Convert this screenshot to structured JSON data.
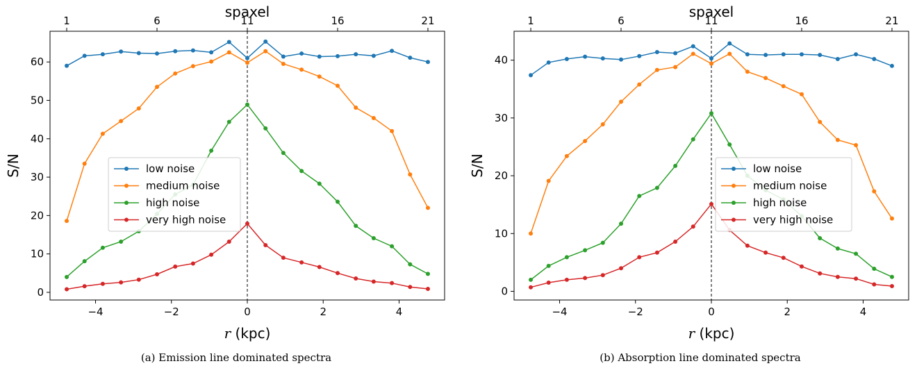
{
  "chart_data": [
    {
      "type": "line",
      "caption": "(a) Emission line dominated spectra",
      "xlabel_var": "r",
      "xlabel_unit": " (kpc)",
      "ylabel": "S/N",
      "top_xlabel": "spaxel",
      "x": [
        -4.76,
        -4.29,
        -3.81,
        -3.33,
        -2.86,
        -2.38,
        -1.9,
        -1.43,
        -0.95,
        -0.48,
        0.0,
        0.48,
        0.95,
        1.43,
        1.9,
        2.38,
        2.86,
        3.33,
        3.81,
        4.29,
        4.76
      ],
      "xlim": [
        -5.2,
        5.2
      ],
      "ylim": [
        -2,
        68
      ],
      "xticks": [
        -4,
        -2,
        0,
        2,
        4
      ],
      "yticks": [
        0,
        10,
        20,
        30,
        40,
        50,
        60
      ],
      "top_ticks": [
        1,
        6,
        11,
        16,
        21
      ],
      "vline_x": 0,
      "legend_position": "center-left",
      "series": [
        {
          "name": "low noise",
          "color": "#1f77b4",
          "values": [
            59.0,
            61.6,
            62.0,
            62.7,
            62.3,
            62.2,
            62.8,
            63.0,
            62.5,
            65.2,
            61.0,
            65.3,
            61.4,
            62.2,
            61.4,
            61.5,
            62.0,
            61.6,
            62.9,
            61.1,
            60.0
          ]
        },
        {
          "name": "medium noise",
          "color": "#ff7f0e",
          "values": [
            18.6,
            33.5,
            41.3,
            44.6,
            47.9,
            53.5,
            57.0,
            58.9,
            60.1,
            62.5,
            59.8,
            62.8,
            59.5,
            58.0,
            56.2,
            53.8,
            48.1,
            45.4,
            42.0,
            30.7,
            22.0
          ]
        },
        {
          "name": "high noise",
          "color": "#2ca02c",
          "values": [
            4.0,
            8.1,
            11.6,
            13.2,
            15.9,
            20.4,
            25.5,
            28.0,
            36.9,
            44.4,
            48.9,
            42.7,
            36.3,
            31.6,
            28.3,
            23.6,
            17.3,
            14.1,
            12.0,
            7.3,
            4.8
          ]
        },
        {
          "name": "very high noise",
          "color": "#d62728",
          "values": [
            0.8,
            1.6,
            2.2,
            2.6,
            3.3,
            4.7,
            6.7,
            7.5,
            9.8,
            13.2,
            17.9,
            12.3,
            9.0,
            7.8,
            6.6,
            5.0,
            3.6,
            2.8,
            2.4,
            1.4,
            0.9
          ]
        }
      ]
    },
    {
      "type": "line",
      "caption": "(b) Absorption line dominated spectra",
      "xlabel_var": "r",
      "xlabel_unit": " (kpc)",
      "ylabel": "S/N",
      "top_xlabel": "spaxel",
      "x": [
        -4.76,
        -4.29,
        -3.81,
        -3.33,
        -2.86,
        -2.38,
        -1.9,
        -1.43,
        -0.95,
        -0.48,
        0.0,
        0.48,
        0.95,
        1.43,
        1.9,
        2.38,
        2.86,
        3.33,
        3.81,
        4.29,
        4.76
      ],
      "xlim": [
        -5.2,
        5.2
      ],
      "ylim": [
        -1.5,
        45
      ],
      "xticks": [
        -4,
        -2,
        0,
        2,
        4
      ],
      "yticks": [
        0,
        10,
        20,
        30,
        40
      ],
      "top_ticks": [
        1,
        6,
        11,
        16,
        21
      ],
      "vline_x": 0,
      "legend_position": "center-right",
      "series": [
        {
          "name": "low noise",
          "color": "#1f77b4",
          "values": [
            37.4,
            39.6,
            40.2,
            40.6,
            40.3,
            40.1,
            40.7,
            41.4,
            41.2,
            42.4,
            40.3,
            42.9,
            41.0,
            40.9,
            41.0,
            41.0,
            40.9,
            40.2,
            41.0,
            40.2,
            39.0
          ]
        },
        {
          "name": "medium noise",
          "color": "#ff7f0e",
          "values": [
            10.0,
            19.1,
            23.4,
            26.0,
            28.9,
            32.8,
            35.8,
            38.3,
            38.8,
            41.1,
            39.4,
            41.1,
            38.0,
            36.9,
            35.5,
            34.1,
            29.3,
            26.2,
            25.3,
            17.3,
            12.6
          ]
        },
        {
          "name": "high noise",
          "color": "#2ca02c",
          "values": [
            2.0,
            4.4,
            5.9,
            7.1,
            8.4,
            11.7,
            16.5,
            17.9,
            21.7,
            26.3,
            30.8,
            25.4,
            20.0,
            17.5,
            15.9,
            13.0,
            9.2,
            7.4,
            6.5,
            3.9,
            2.5
          ]
        },
        {
          "name": "very high noise",
          "color": "#d62728",
          "values": [
            0.7,
            1.5,
            2.0,
            2.3,
            2.8,
            4.0,
            5.9,
            6.7,
            8.6,
            11.2,
            15.1,
            10.6,
            7.9,
            6.7,
            5.8,
            4.3,
            3.1,
            2.5,
            2.2,
            1.2,
            0.9
          ]
        }
      ]
    }
  ]
}
